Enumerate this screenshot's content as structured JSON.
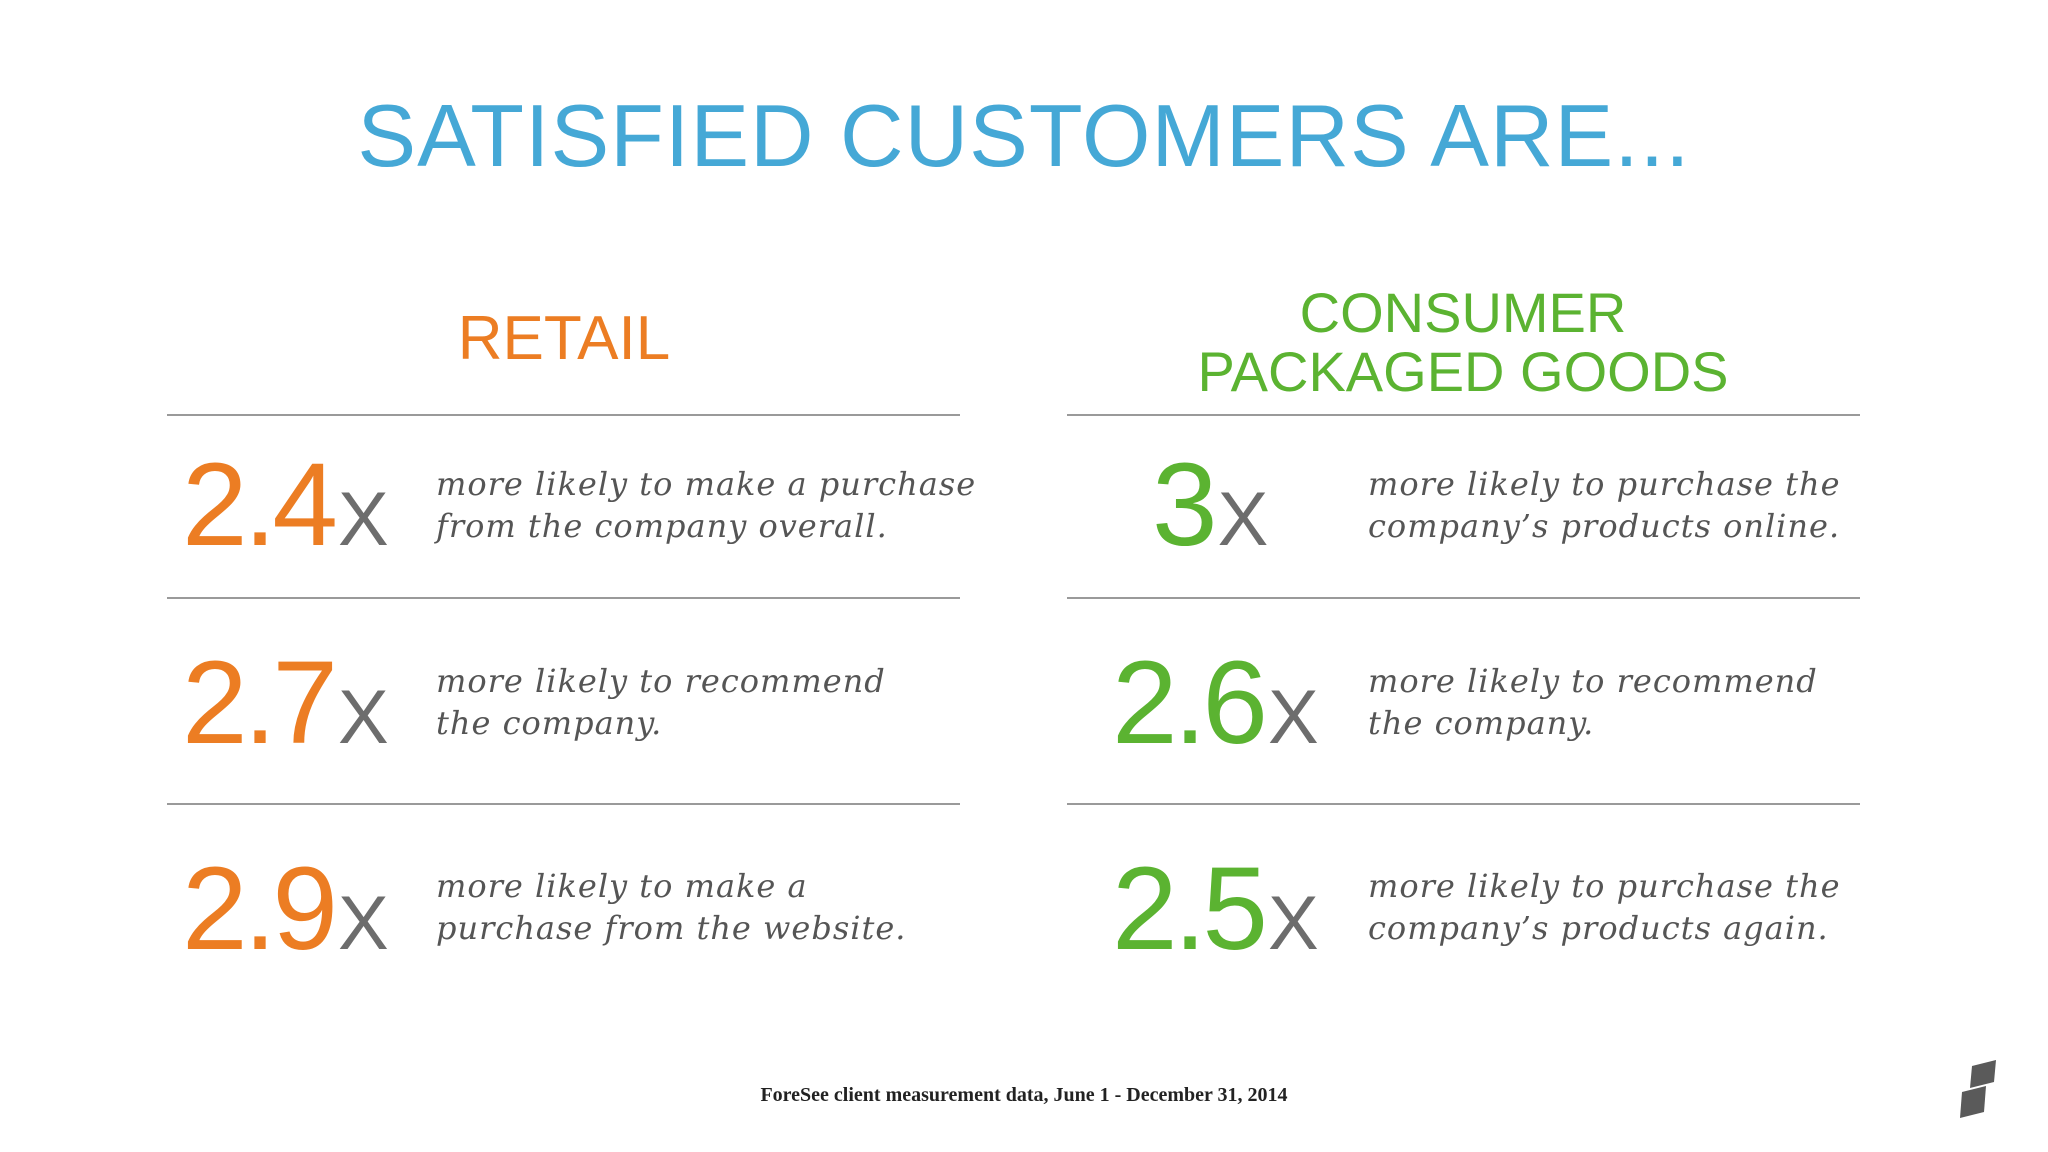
{
  "title": "SATISFIED CUSTOMERS ARE...",
  "columns": {
    "retail": {
      "heading": [
        "RETAIL"
      ],
      "color": "#ec7d23",
      "stats": [
        {
          "value": "2.4",
          "suffix": "X",
          "text": [
            "more likely to make a purchase",
            "from the company overall."
          ]
        },
        {
          "value": "2.7",
          "suffix": "X",
          "text": [
            "more likely to recommend",
            "the company."
          ]
        },
        {
          "value": "2.9",
          "suffix": "X",
          "text": [
            "more likely to make a",
            "purchase from the website."
          ]
        }
      ]
    },
    "cpg": {
      "heading": [
        "CONSUMER",
        "PACKAGED GOODS"
      ],
      "color": "#5bb331",
      "stats": [
        {
          "value": "3",
          "suffix": "X",
          "text": [
            "more likely to purchase the",
            "company’s products online."
          ]
        },
        {
          "value": "2.6",
          "suffix": "X",
          "text": [
            "more likely to recommend",
            "the company."
          ]
        },
        {
          "value": "2.5",
          "suffix": "X",
          "text": [
            "more likely to purchase the",
            "company’s products again."
          ]
        }
      ]
    }
  },
  "footnote": "ForeSee client measurement data, June 1 - December 31, 2014",
  "logo_icon": "brand-logo-icon",
  "colors": {
    "title": "#45a8d6",
    "retail": "#ec7d23",
    "cpg": "#5bb331",
    "x": "#6d6d6d"
  }
}
